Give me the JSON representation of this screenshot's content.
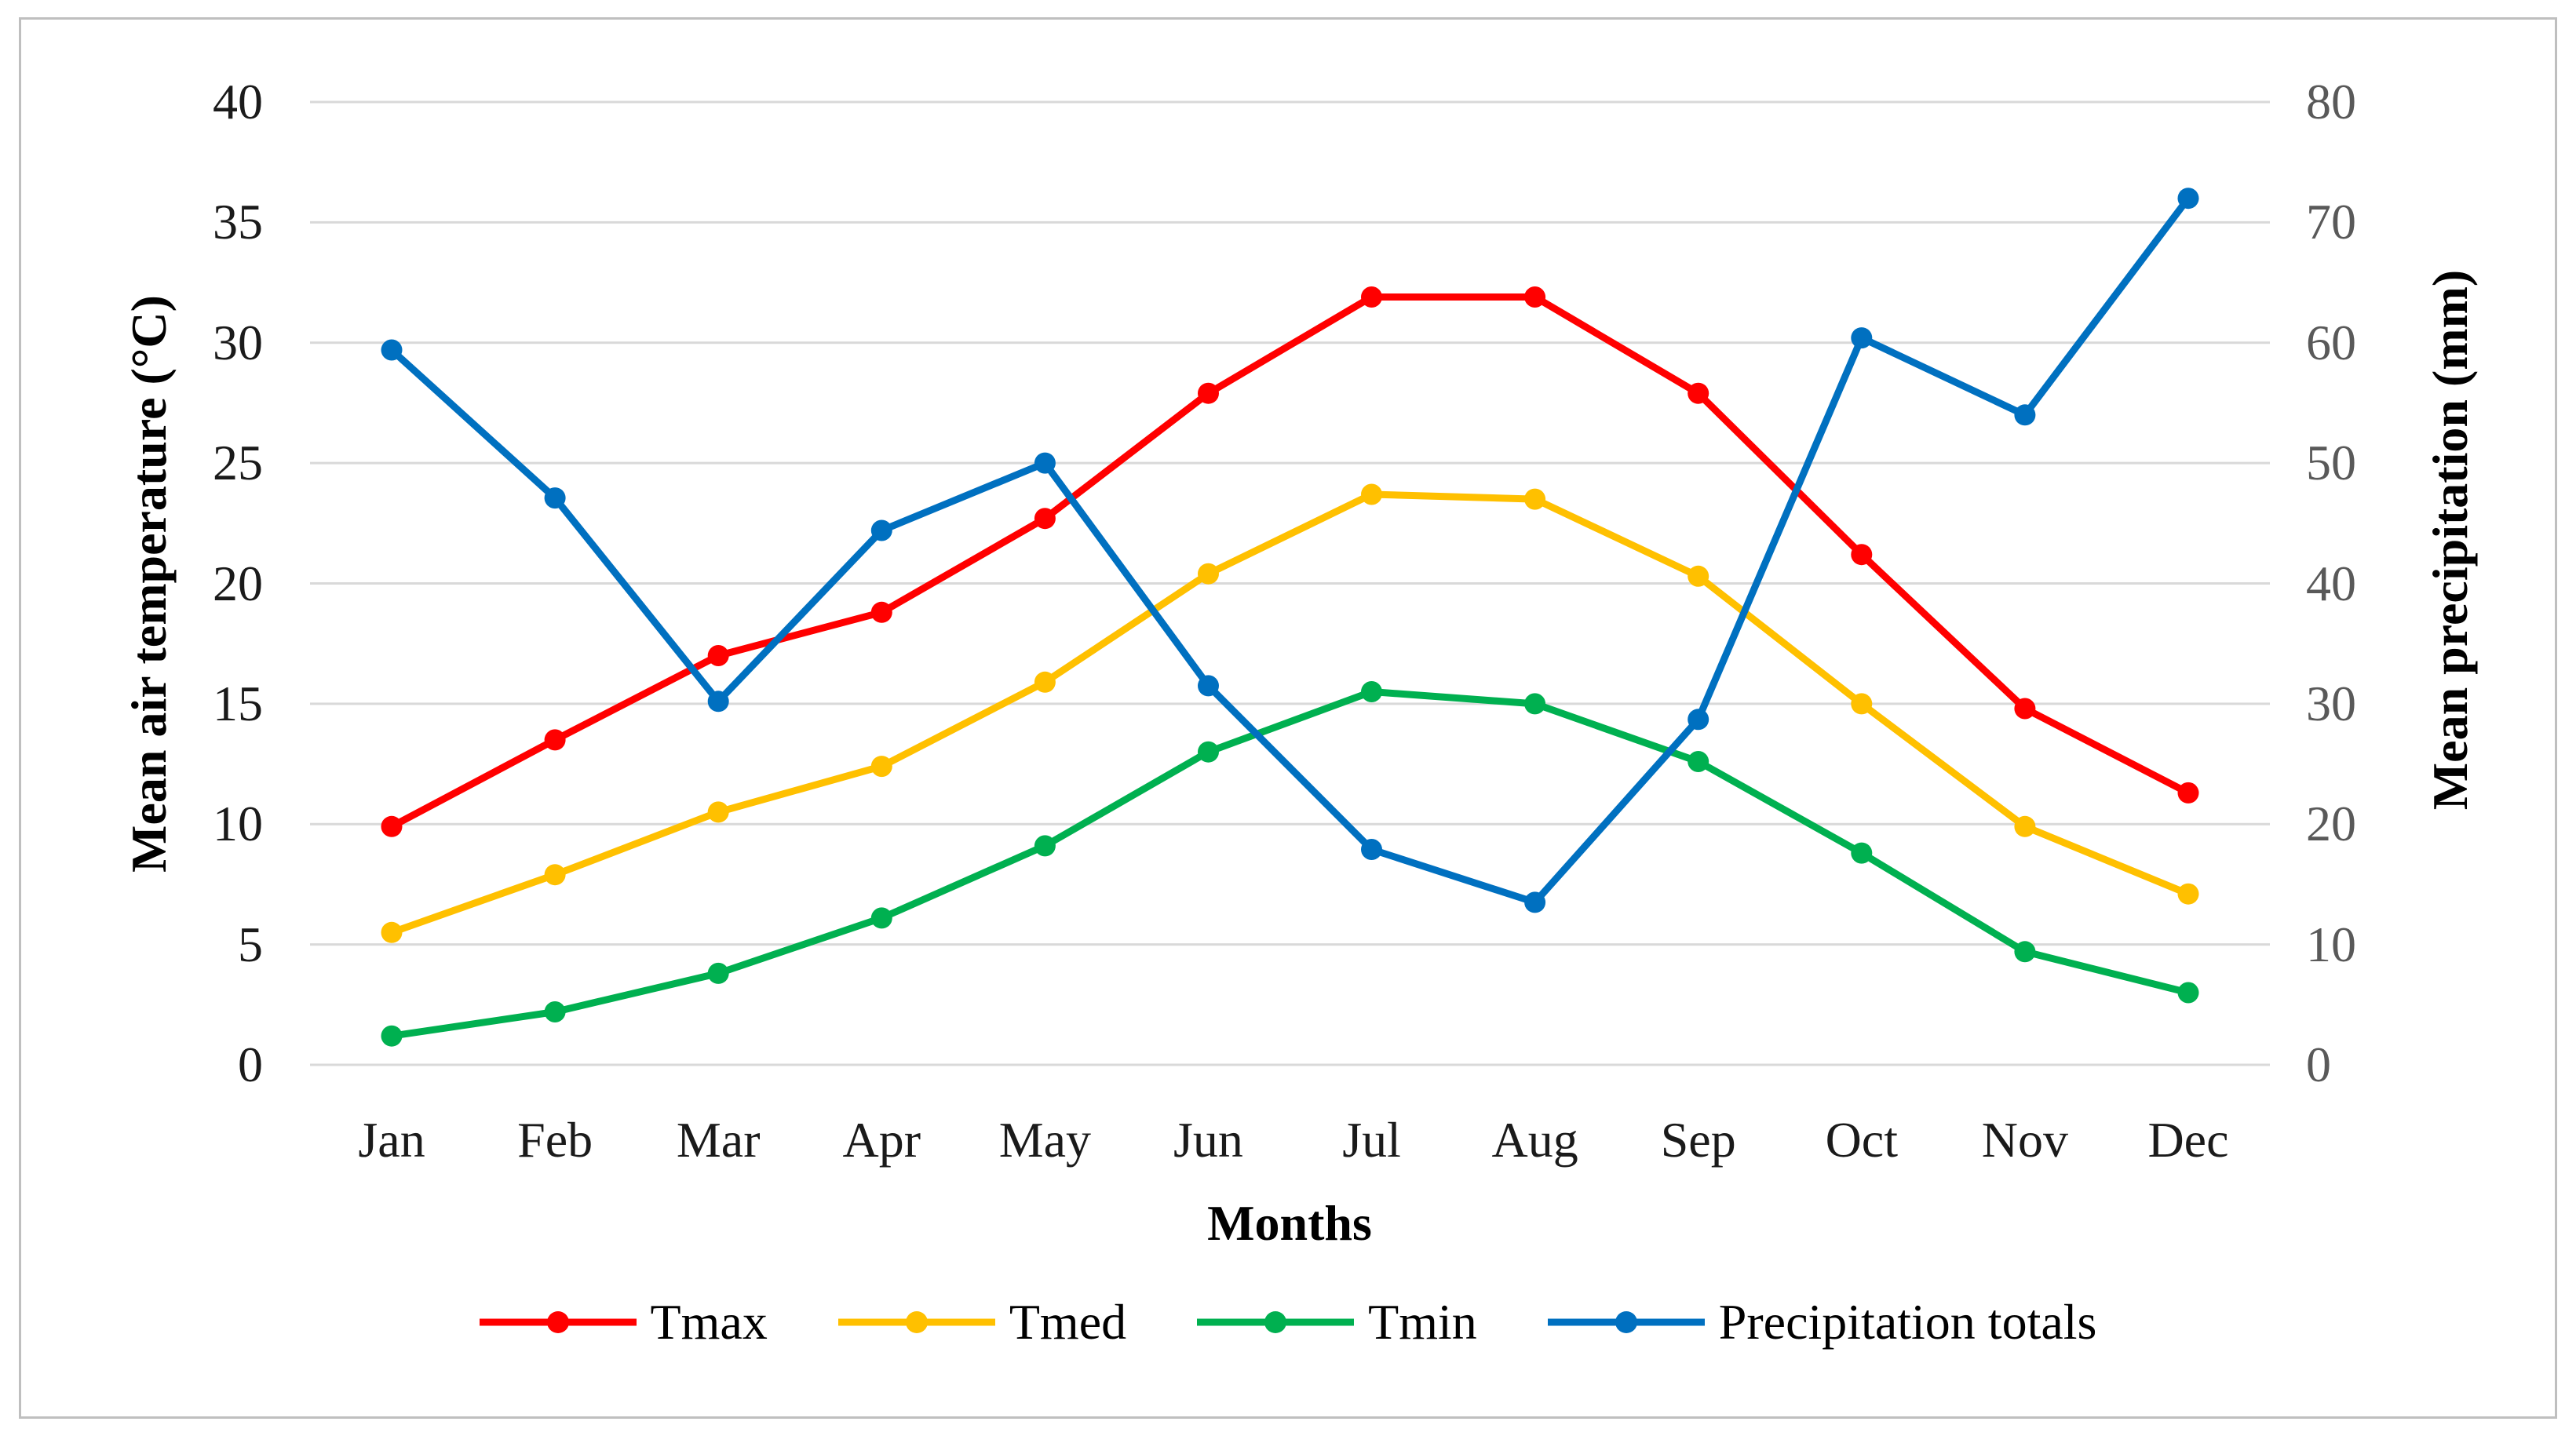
{
  "chart_data": {
    "type": "line",
    "title": "",
    "categories": [
      "Jan",
      "Feb",
      "Mar",
      "Apr",
      "May",
      "Jun",
      "Jul",
      "Aug",
      "Sep",
      "Oct",
      "Nov",
      "Dec"
    ],
    "series": [
      {
        "name": "Tmax",
        "axis": "left",
        "color": "#FF0000",
        "values": [
          9.9,
          13.5,
          17.0,
          18.8,
          22.7,
          27.9,
          31.9,
          31.9,
          27.9,
          21.2,
          14.8,
          11.3
        ]
      },
      {
        "name": "Tmed",
        "axis": "left",
        "color": "#FFC000",
        "values": [
          5.5,
          7.9,
          10.5,
          12.4,
          15.9,
          20.4,
          23.7,
          23.5,
          20.3,
          15.0,
          9.9,
          7.1
        ]
      },
      {
        "name": "Tmin",
        "axis": "left",
        "color": "#00B050",
        "values": [
          1.2,
          2.2,
          3.8,
          6.1,
          9.1,
          13.0,
          15.5,
          15.0,
          12.6,
          8.8,
          4.7,
          3.0
        ]
      },
      {
        "name": "Precipitation totals",
        "axis": "right",
        "color": "#0070C0",
        "values": [
          59.4,
          47.1,
          30.2,
          44.4,
          50.0,
          31.5,
          17.9,
          13.5,
          28.7,
          60.4,
          54.0,
          72.0
        ]
      }
    ],
    "xlabel": "Months",
    "ylabel_left": "Mean air temperature (°C)",
    "ylabel_right": "Mean precipitation (mm)",
    "ylim_left": [
      0,
      40
    ],
    "yticks_left": [
      "0",
      "5",
      "10",
      "15",
      "20",
      "25",
      "30",
      "35",
      "40"
    ],
    "ylim_right": [
      0,
      80
    ],
    "yticks_right": [
      "0",
      "10",
      "20",
      "30",
      "40",
      "50",
      "60",
      "70",
      "80"
    ],
    "grid": true,
    "legend_position": "bottom",
    "colors": {
      "gridline": "#D9D9D9",
      "border": "#BFBFBF",
      "left_tick_text": "#1a1a1a",
      "right_tick_text": "#595959"
    }
  }
}
